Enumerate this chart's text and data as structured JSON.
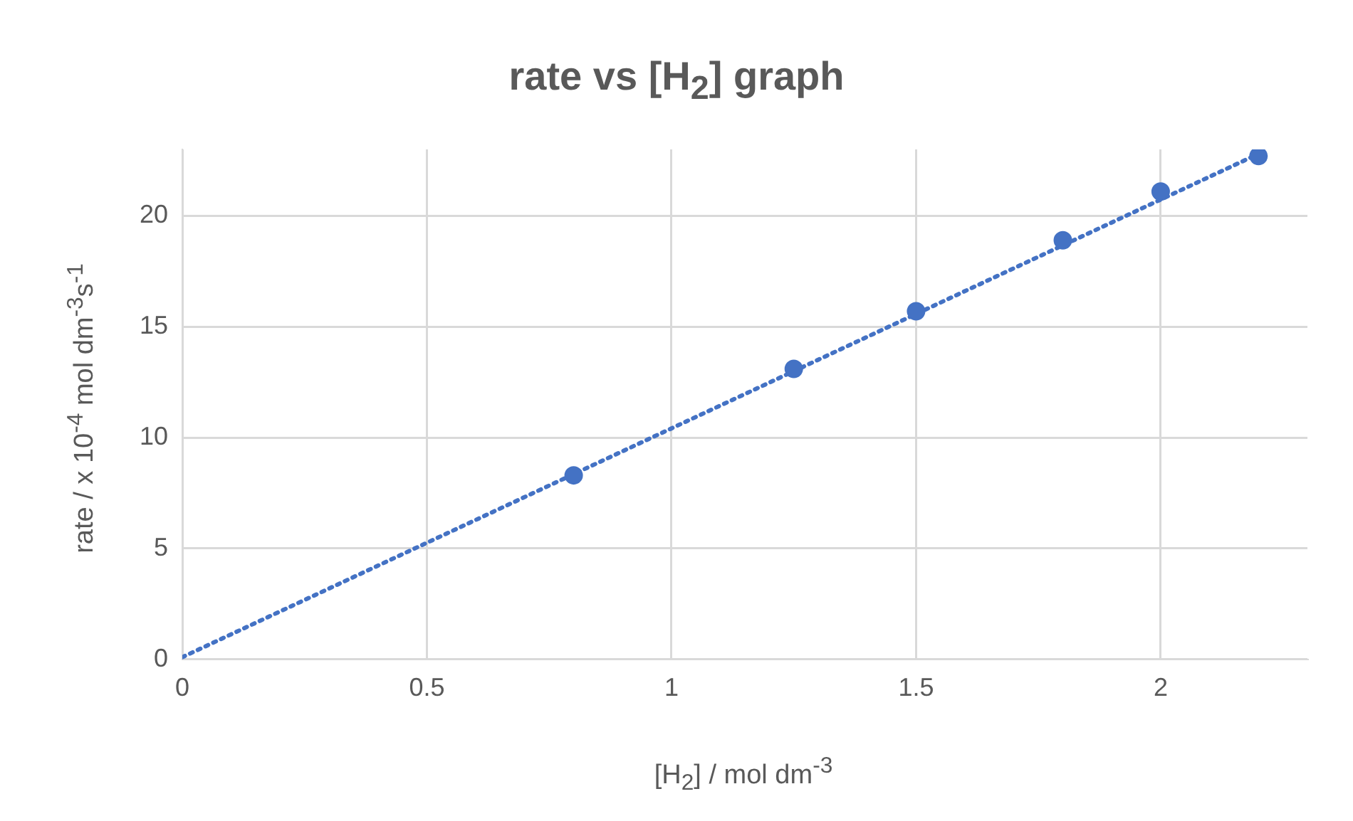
{
  "chart_data": {
    "type": "scatter",
    "title": "rate vs [H$_{2}$] graph",
    "xlabel": "[H$_{2}$] / mol dm$^{-3}$",
    "ylabel": "rate / x 10$^{-4}$ mol dm$^{-3}$s$^{-1}$",
    "xlim": [
      0,
      2.3
    ],
    "xticks": [
      0,
      0.5,
      1,
      1.5,
      2
    ],
    "ylim": [
      0,
      23
    ],
    "yticks": [
      0,
      5,
      10,
      15,
      20
    ],
    "grid": true,
    "marker": "circle",
    "series": [
      {
        "type": "scatter",
        "color": "#4472c4",
        "x": [
          0.8,
          1.25,
          1.5,
          1.8,
          2,
          2.2
        ],
        "values": [
          8.3,
          13.1,
          15.7,
          18.9,
          21.1,
          22.7
        ]
      },
      {
        "type": "line",
        "color": "#4472c4",
        "x": [
          0,
          2.2
        ],
        "values": [
          0.1,
          22.8
        ],
        "marker": "none",
        "line_style": "dotted"
      }
    ]
  }
}
